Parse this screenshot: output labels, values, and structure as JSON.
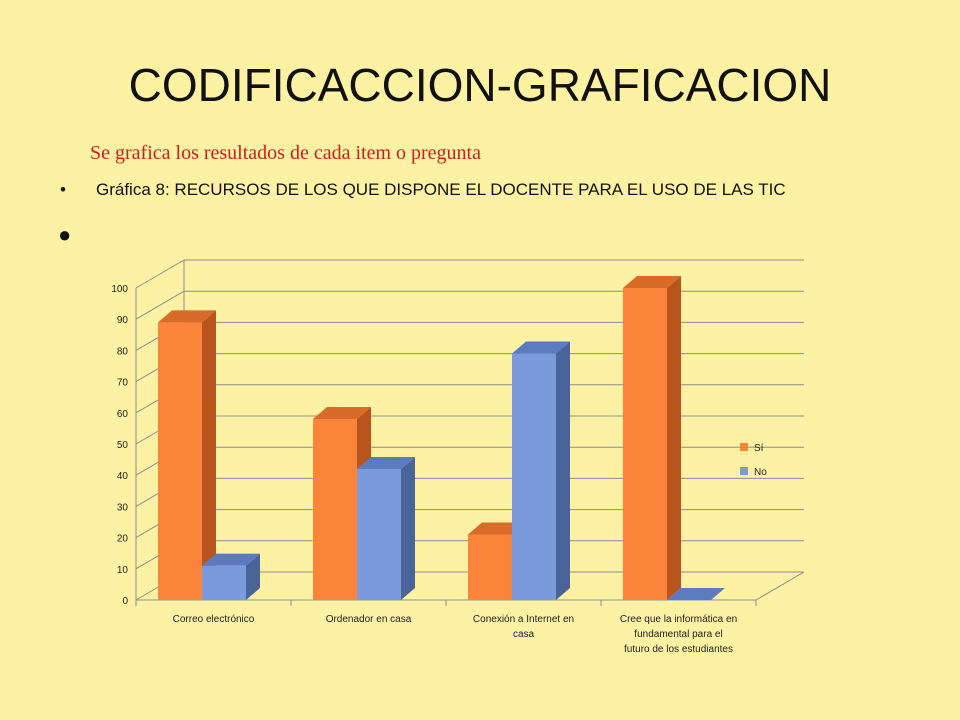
{
  "slide": {
    "title": "CODIFICACCION-GRAFICACION",
    "subtitle": "Se grafica los resultados de cada item o pregunta",
    "bullet_1": "Gráfica 8: RECURSOS DE LOS QUE DISPONE EL DOCENTE PARA EL USO DE LAS TIC",
    "bullet_2": ""
  },
  "chart_data": {
    "type": "bar",
    "style": "3d-clustered-column",
    "categories": [
      [
        "Correo electrónico"
      ],
      [
        "Ordenador en casa"
      ],
      [
        "Conexión a Internet en",
        "casa"
      ],
      [
        "Cree que la informática en",
        "fundamental para el",
        "futuro de los estudiantes"
      ]
    ],
    "series": [
      {
        "name": "Sí",
        "values": [
          89,
          58,
          21,
          100
        ],
        "color": "#f9843a",
        "side_color": "#b9551c",
        "top_color": "#d86a2a"
      },
      {
        "name": "No",
        "values": [
          11,
          42,
          79,
          0
        ],
        "color": "#7b9bdc",
        "side_color": "#4a6399",
        "top_color": "#5c7bbf"
      }
    ],
    "ylim": [
      0,
      100
    ],
    "yticks": [
      0,
      10,
      20,
      30,
      40,
      50,
      60,
      70,
      80,
      90,
      100
    ],
    "grid": true,
    "legend_position": "right"
  }
}
